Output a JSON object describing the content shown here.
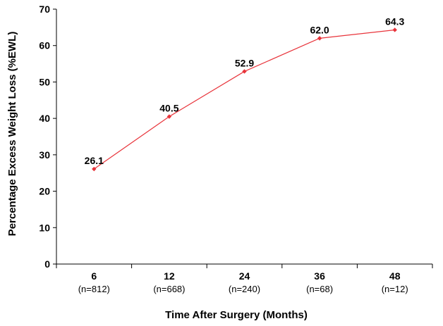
{
  "chart_data": {
    "type": "line",
    "xlabel": "Time After Surgery (Months)",
    "ylabel": "Percentage Excess Weight Loss (%EWL)",
    "categories": [
      "6",
      "12",
      "24",
      "36",
      "48"
    ],
    "sample_sizes": [
      "(n=812)",
      "(n=668)",
      "(n=240)",
      "(n=68)",
      "(n=12)"
    ],
    "series": [
      {
        "values": [
          26.1,
          40.5,
          52.9,
          62.0,
          64.3
        ],
        "data_labels": [
          "26.1",
          "40.5",
          "52.9",
          "62.0",
          "64.3"
        ],
        "color": "#e8333a"
      }
    ],
    "ylim": [
      0,
      70
    ],
    "yticks": [
      0,
      10,
      20,
      30,
      40,
      50,
      60,
      70
    ],
    "grid": false,
    "legend": "none"
  }
}
